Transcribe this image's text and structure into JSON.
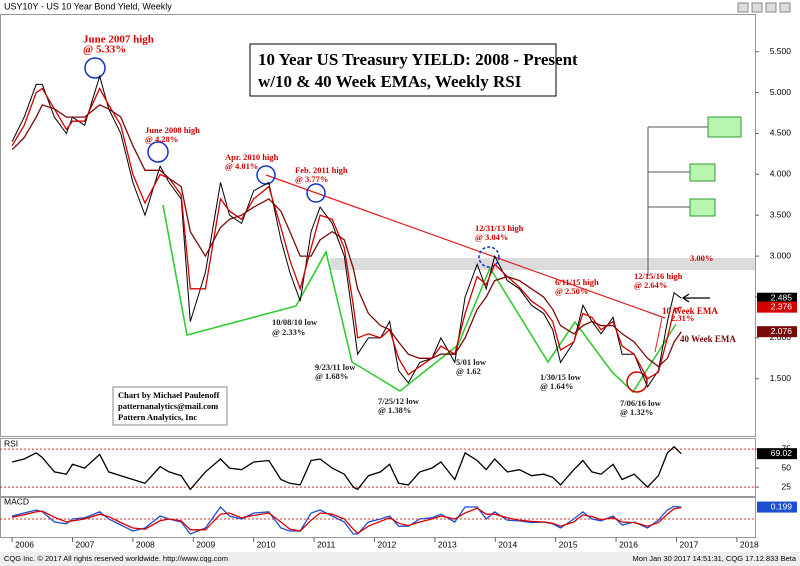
{
  "header": "USY10Y - US 10 Year Bond Yield, Weekly",
  "footer_left": "CQG Inc. © 2017 All rights reserved worldwide. http://www.cqg.com",
  "footer_right": "Mon Jan 30 2017 14:51:31, CQG 17.12.833 Beta",
  "chart_data": [
    {
      "type": "line",
      "title": "10 Year US Treasury YIELD: 2008 - Present",
      "subtitle": "w/10 & 40 Week EMAs, Weekly RSI",
      "x": [
        2006.0,
        2006.2,
        2006.4,
        2006.5,
        2006.7,
        2006.9,
        2007.0,
        2007.2,
        2007.45,
        2007.6,
        2007.8,
        2008.0,
        2008.2,
        2008.45,
        2008.6,
        2008.8,
        2008.95,
        2009.2,
        2009.45,
        2009.6,
        2009.8,
        2010.0,
        2010.25,
        2010.45,
        2010.6,
        2010.77,
        2010.95,
        2011.1,
        2011.3,
        2011.5,
        2011.65,
        2011.72,
        2011.9,
        2012.1,
        2012.25,
        2012.4,
        2012.56,
        2012.75,
        2012.95,
        2013.1,
        2013.33,
        2013.5,
        2013.7,
        2013.85,
        2013.99,
        2014.2,
        2014.4,
        2014.6,
        2014.8,
        2014.95,
        2015.08,
        2015.3,
        2015.45,
        2015.6,
        2015.75,
        2015.95,
        2016.1,
        2016.3,
        2016.52,
        2016.7,
        2016.85,
        2016.96,
        2017.08
      ],
      "series": [
        {
          "color": "#000000",
          "last_value": 2.485,
          "values": [
            4.4,
            4.7,
            5.1,
            5.1,
            4.7,
            4.5,
            4.7,
            4.6,
            5.2,
            4.8,
            4.5,
            3.9,
            3.5,
            4.1,
            3.9,
            3.7,
            2.2,
            2.8,
            3.9,
            3.5,
            3.4,
            3.8,
            3.9,
            3.2,
            2.8,
            2.45,
            3.3,
            3.6,
            3.4,
            3.0,
            2.2,
            1.8,
            2.0,
            2.0,
            2.2,
            1.6,
            1.45,
            1.7,
            1.75,
            2.0,
            1.7,
            2.5,
            2.9,
            2.6,
            3.0,
            2.7,
            2.6,
            2.4,
            2.3,
            2.1,
            1.7,
            1.95,
            2.4,
            2.2,
            2.05,
            2.25,
            1.8,
            1.8,
            1.4,
            1.6,
            2.2,
            2.55,
            2.485
          ]
        },
        {
          "name": "10 Week EMA",
          "color": "#d40000",
          "last_value": 2.376,
          "values": [
            4.35,
            4.6,
            5.0,
            5.05,
            4.8,
            4.55,
            4.65,
            4.65,
            5.05,
            4.85,
            4.6,
            4.0,
            3.65,
            4.0,
            3.95,
            3.75,
            2.6,
            2.6,
            3.7,
            3.55,
            3.45,
            3.7,
            3.85,
            3.35,
            2.95,
            2.6,
            3.1,
            3.5,
            3.45,
            3.1,
            2.4,
            2.0,
            2.05,
            2.0,
            2.1,
            1.75,
            1.55,
            1.65,
            1.75,
            1.9,
            1.8,
            2.3,
            2.75,
            2.65,
            2.9,
            2.75,
            2.62,
            2.45,
            2.35,
            2.2,
            1.85,
            1.95,
            2.3,
            2.25,
            2.1,
            2.2,
            1.9,
            1.8,
            1.5,
            1.58,
            2.0,
            2.35,
            2.376
          ]
        },
        {
          "name": "40 Week EMA",
          "color": "#7a0a0a",
          "last_value": 2.076,
          "values": [
            4.3,
            4.45,
            4.7,
            4.85,
            4.8,
            4.7,
            4.7,
            4.7,
            4.85,
            4.8,
            4.7,
            4.35,
            4.05,
            4.05,
            3.95,
            3.85,
            3.3,
            3.0,
            3.35,
            3.45,
            3.5,
            3.6,
            3.7,
            3.55,
            3.3,
            3.0,
            3.0,
            3.2,
            3.3,
            3.2,
            2.85,
            2.6,
            2.3,
            2.15,
            2.1,
            1.95,
            1.8,
            1.75,
            1.75,
            1.8,
            1.8,
            2.0,
            2.35,
            2.5,
            2.7,
            2.75,
            2.7,
            2.6,
            2.5,
            2.35,
            2.15,
            2.05,
            2.15,
            2.2,
            2.15,
            2.15,
            2.05,
            1.95,
            1.75,
            1.65,
            1.75,
            1.95,
            2.076
          ]
        }
      ],
      "xlim": [
        2005.8,
        2018.3
      ],
      "xticks": [
        2006,
        2007,
        2008,
        2009,
        2010,
        2011,
        2012,
        2013,
        2014,
        2015,
        2016,
        2017,
        2018
      ],
      "ylim": [
        0.8,
        5.9
      ],
      "yticks": [
        {
          "value": 1.5,
          "label": "1.500"
        },
        {
          "value": 2.0,
          "label": "2.000"
        },
        {
          "value": 2.5,
          "label": "2.500"
        },
        {
          "value": 3.0,
          "label": "3.000"
        },
        {
          "value": 3.5,
          "label": "3.500"
        },
        {
          "value": 4.0,
          "label": "4.000"
        },
        {
          "value": 4.5,
          "label": "4.500"
        },
        {
          "value": 5.0,
          "label": "5.000"
        },
        {
          "value": 5.5,
          "label": "5.500"
        }
      ],
      "annotations": [
        "June 2007 high",
        "@ 5.33%",
        "June 2008 high",
        "@ 4.28%",
        "Apr. 2010 high",
        "@ 4.01%",
        "Feb. 2011 high",
        "@ 3.77%",
        "12/31/13 high",
        "@ 3.04%",
        "6/11/15 high",
        "@ 2.50%",
        "12/15/16 high",
        "@ 2.64%",
        "10/08/10 low",
        "@ 2.33%",
        "9/23/11 low",
        "@ 1.68%",
        "7/25/12 low",
        "@ 1.38%",
        "5/01 low",
        "@ 1.62",
        "1/30/15 low",
        "@ 1.64%",
        "7/06/16 low",
        "@ 1.32%",
        "3.00%",
        "2.31%"
      ],
      "credit": [
        "Chart by Michael Paulenoff",
        "patternanalytics@mail.com",
        "Pattern Analytics, Inc"
      ]
    },
    {
      "type": "line",
      "title": "RSI",
      "series": [
        {
          "color": "#000000",
          "last_value": 69.02,
          "values": [
            58,
            62,
            70,
            64,
            45,
            42,
            55,
            50,
            68,
            45,
            40,
            35,
            30,
            52,
            45,
            40,
            22,
            45,
            62,
            50,
            48,
            58,
            60,
            35,
            30,
            28,
            60,
            62,
            50,
            42,
            25,
            22,
            40,
            45,
            55,
            30,
            28,
            45,
            50,
            58,
            35,
            70,
            60,
            48,
            62,
            45,
            48,
            40,
            42,
            38,
            28,
            48,
            60,
            45,
            42,
            55,
            35,
            42,
            25,
            40,
            70,
            78,
            69.02
          ]
        }
      ],
      "ylim": [
        14,
        87
      ],
      "yticks": [
        25,
        50,
        75
      ],
      "hlines": [
        75,
        25
      ]
    },
    {
      "type": "line",
      "title": "MACD",
      "series": [
        {
          "color": "#1f4fd1",
          "last_value": 0.199,
          "values": [
            0.05,
            0.1,
            0.15,
            0.12,
            -0.05,
            -0.08,
            0.0,
            0.02,
            0.12,
            0.0,
            -0.1,
            -0.2,
            -0.15,
            0.05,
            0.0,
            -0.05,
            -0.25,
            -0.15,
            0.2,
            0.05,
            0.0,
            0.1,
            0.12,
            -0.15,
            -0.2,
            -0.2,
            0.1,
            0.15,
            0.05,
            -0.05,
            -0.25,
            -0.25,
            -0.05,
            0.0,
            0.05,
            -0.12,
            -0.12,
            0.0,
            0.02,
            0.08,
            -0.05,
            0.2,
            0.2,
            0.0,
            0.12,
            -0.02,
            -0.03,
            -0.06,
            -0.05,
            -0.08,
            -0.15,
            0.0,
            0.12,
            0.0,
            -0.03,
            0.05,
            -0.1,
            -0.05,
            -0.15,
            -0.02,
            0.15,
            0.21,
            0.199
          ]
        },
        {
          "color": "#d40000",
          "values": [
            0.03,
            0.07,
            0.12,
            0.13,
            0.03,
            -0.05,
            -0.03,
            0.0,
            0.08,
            0.04,
            -0.06,
            -0.15,
            -0.17,
            -0.03,
            0.0,
            -0.03,
            -0.18,
            -0.18,
            0.08,
            0.1,
            0.02,
            0.06,
            0.1,
            -0.05,
            -0.17,
            -0.2,
            -0.02,
            0.1,
            0.08,
            0.0,
            -0.17,
            -0.24,
            -0.12,
            -0.04,
            0.02,
            -0.07,
            -0.11,
            -0.05,
            0.0,
            0.05,
            0.0,
            0.1,
            0.18,
            0.08,
            0.08,
            0.02,
            -0.02,
            -0.04,
            -0.05,
            -0.07,
            -0.12,
            -0.05,
            0.07,
            0.04,
            -0.01,
            0.02,
            -0.05,
            -0.06,
            -0.12,
            -0.06,
            0.08,
            0.17,
            0.19
          ]
        }
      ],
      "ylim": [
        -0.3,
        0.35
      ],
      "hlines": [
        0
      ]
    }
  ]
}
